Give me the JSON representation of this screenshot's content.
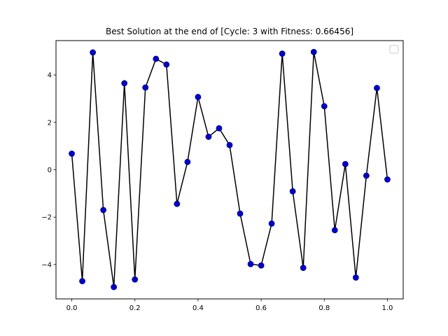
{
  "chart_data": {
    "type": "line",
    "title": "Best Solution at the end of [Cycle: 3 with Fitness: 0.66456]",
    "xlabel": "",
    "ylabel": "",
    "xlim": [
      -0.05,
      1.05
    ],
    "ylim": [
      -5.45,
      5.45
    ],
    "xticks": [
      0.0,
      0.2,
      0.4,
      0.6,
      0.8,
      1.0
    ],
    "xtick_labels": [
      "0.0",
      "0.2",
      "0.4",
      "0.6",
      "0.8",
      "1.0"
    ],
    "yticks": [
      -4,
      -2,
      0,
      2,
      4
    ],
    "ytick_labels": [
      "−4",
      "−2",
      "0",
      "2",
      "4"
    ],
    "grid": false,
    "legend": {
      "placement": "top-right",
      "entries": []
    },
    "line_color": "#000000",
    "marker_color": "#0000cc",
    "marker_edge_color": "#000080",
    "series": [
      {
        "x": [
          0.0,
          0.0333,
          0.0667,
          0.1,
          0.1333,
          0.1667,
          0.2,
          0.2333,
          0.2667,
          0.3,
          0.3333,
          0.3667,
          0.4,
          0.4333,
          0.4667,
          0.5,
          0.5333,
          0.5667,
          0.6,
          0.6333,
          0.6667,
          0.7,
          0.7333,
          0.7667,
          0.8,
          0.8333,
          0.8667,
          0.9,
          0.9333,
          0.9667,
          1.0
        ],
        "y": [
          0.68,
          -4.7,
          4.95,
          -1.7,
          -4.95,
          3.65,
          -4.63,
          3.47,
          4.68,
          4.44,
          -1.44,
          0.33,
          3.07,
          1.39,
          1.75,
          1.04,
          -1.85,
          -3.98,
          -4.04,
          -2.27,
          4.9,
          -0.91,
          -4.14,
          4.97,
          2.68,
          -2.55,
          0.24,
          -4.55,
          -0.25,
          3.45,
          -0.41
        ]
      }
    ]
  }
}
